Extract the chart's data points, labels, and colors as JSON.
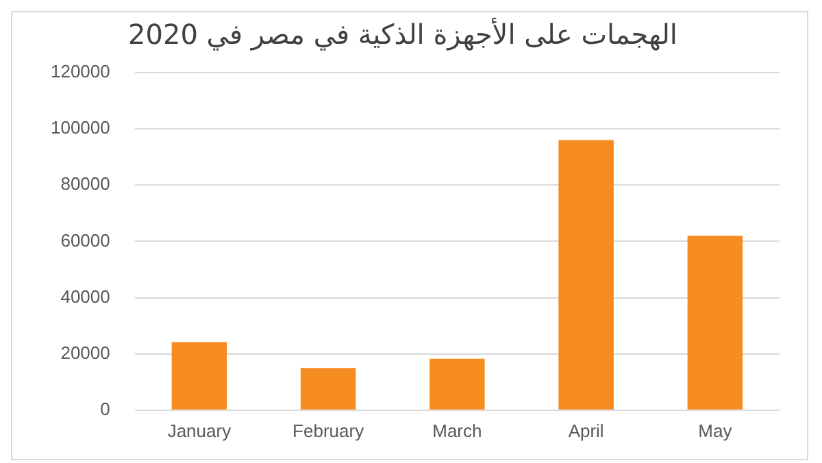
{
  "chart_data": {
    "type": "bar",
    "title": "الهجمات على الأجهزة الذكية في مصر في 2020",
    "categories": [
      "January",
      "February",
      "March",
      "April",
      "May"
    ],
    "values": [
      24200,
      15000,
      18300,
      96000,
      62000
    ],
    "color": "#f68b1f",
    "ylim": [
      0,
      120000
    ],
    "yticks": [
      0,
      20000,
      40000,
      60000,
      80000,
      100000,
      120000
    ],
    "grid": "y",
    "legend": false
  }
}
